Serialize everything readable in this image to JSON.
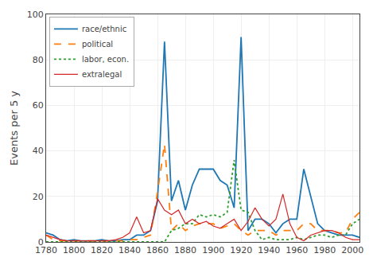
{
  "chart_data": {
    "type": "line",
    "x": [
      1780,
      1785,
      1790,
      1795,
      1800,
      1805,
      1810,
      1815,
      1820,
      1825,
      1830,
      1835,
      1840,
      1845,
      1850,
      1855,
      1860,
      1865,
      1870,
      1875,
      1880,
      1885,
      1890,
      1895,
      1900,
      1905,
      1910,
      1915,
      1920,
      1925,
      1930,
      1935,
      1940,
      1945,
      1950,
      1955,
      1960,
      1965,
      1970,
      1975,
      1980,
      1985,
      1990,
      1995,
      2000,
      2005
    ],
    "series": [
      {
        "name": "race/ethnic",
        "line_style": "solid",
        "values": [
          4,
          3,
          1,
          0.5,
          1,
          0.5,
          0.5,
          0.5,
          1,
          0.5,
          0.5,
          1,
          1,
          3,
          3,
          5,
          18,
          88,
          18,
          27,
          14,
          25,
          32,
          32,
          32,
          27,
          25,
          15,
          90,
          5,
          10,
          10,
          8,
          4,
          8,
          10,
          10,
          32,
          20,
          8,
          5,
          4,
          3,
          3,
          3,
          2
        ]
      },
      {
        "name": "political",
        "line_style": "dashed",
        "values": [
          3,
          1,
          0.5,
          0.5,
          0.5,
          0.5,
          0.5,
          0.5,
          0.5,
          0.5,
          0.5,
          0.5,
          1,
          1,
          2,
          3,
          22,
          43,
          5,
          8,
          5,
          7,
          8,
          8,
          8,
          6,
          7,
          8,
          5,
          3,
          5,
          5,
          5,
          3,
          5,
          5,
          5,
          8,
          8,
          5,
          5,
          5,
          4,
          4,
          10,
          13
        ]
      },
      {
        "name": "labor, econ.",
        "line_style": "dotted",
        "values": [
          0,
          0,
          0,
          0,
          0,
          0,
          0,
          0,
          0,
          0,
          0,
          0,
          0,
          0,
          0,
          0,
          0,
          0,
          5,
          6,
          8,
          8,
          12,
          11,
          12,
          11,
          13,
          36,
          14,
          13,
          5,
          1,
          2,
          1,
          1,
          1,
          2,
          1,
          2,
          3,
          3,
          2,
          3,
          3,
          8,
          10
        ]
      },
      {
        "name": "extralegal",
        "line_style": "solid",
        "values": [
          3,
          2,
          1,
          0.5,
          0.5,
          0.5,
          0.5,
          0.5,
          0.5,
          0.5,
          1,
          2,
          4,
          11,
          4,
          5,
          19,
          14,
          12,
          14,
          8,
          10,
          8,
          9,
          7,
          6,
          8,
          10,
          5,
          9,
          15,
          10,
          7,
          10,
          21,
          8,
          2,
          0.5,
          3,
          4,
          5,
          5,
          4,
          2,
          1,
          1
        ]
      }
    ],
    "ylabel": "Events per 5 y",
    "xlim": [
      1780,
      2005
    ],
    "ylim": [
      0,
      100
    ],
    "xticks": [
      1780,
      1800,
      1820,
      1840,
      1860,
      1880,
      1900,
      1920,
      1940,
      1960,
      1980,
      2000
    ],
    "yticks": [
      0,
      20,
      40,
      60,
      80,
      100
    ],
    "grid": true,
    "legend": "upper left"
  }
}
